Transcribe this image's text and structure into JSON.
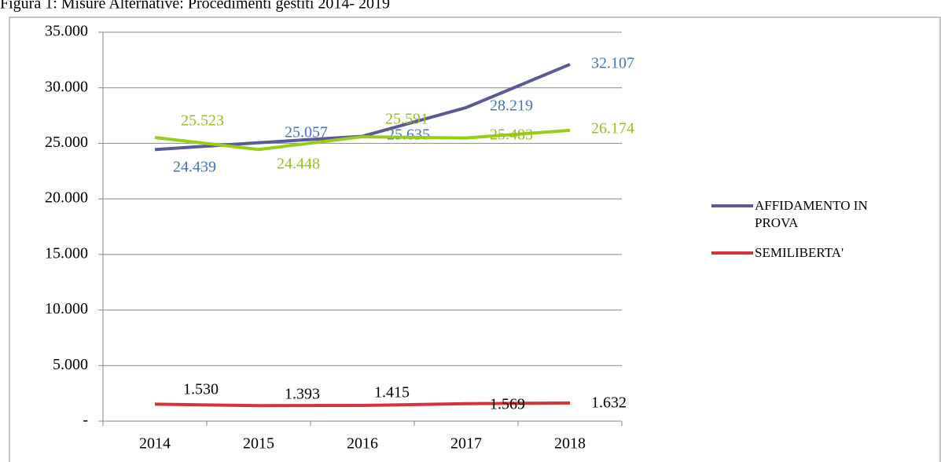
{
  "chart_data": {
    "type": "line",
    "title": "Figura 1: Misure Alternative: Procedimenti gestiti 2014- 2019",
    "categories": [
      "2014",
      "2015",
      "2016",
      "2017",
      "2018"
    ],
    "series": [
      {
        "name": "AFFIDAMENTO IN PROVA",
        "color": "#5a5b96",
        "label_color": "#4472c4",
        "values": [
          24439,
          25057,
          25635,
          28219,
          32107
        ],
        "value_labels": [
          "24.439",
          "25.057",
          "25.635",
          "28.219",
          "32.107"
        ]
      },
      {
        "color": "#99cc1a",
        "label_color": "#92c01f",
        "values": [
          25523,
          24448,
          25591,
          25483,
          26174
        ],
        "value_labels": [
          "25.523",
          "24.448",
          "25.591",
          "25.483",
          "26.174"
        ]
      },
      {
        "name": "SEMILIBERTA'",
        "color": "#d9323a",
        "label_color": "#000000",
        "values": [
          1530,
          1393,
          1415,
          1569,
          1632
        ],
        "value_labels": [
          "1.530",
          "1.393",
          "1.415",
          "1.569",
          "1.632"
        ]
      }
    ],
    "ylim": [
      0,
      35000
    ],
    "yticks": [
      {
        "value": 0,
        "label": "-"
      },
      {
        "value": 5000,
        "label": "5.000"
      },
      {
        "value": 10000,
        "label": "10.000"
      },
      {
        "value": 15000,
        "label": "15.000"
      },
      {
        "value": 20000,
        "label": "20.000"
      },
      {
        "value": 25000,
        "label": "25.000"
      },
      {
        "value": 30000,
        "label": "30.000"
      },
      {
        "value": 35000,
        "label": "35.000"
      }
    ],
    "grid": true,
    "legend": "right"
  }
}
